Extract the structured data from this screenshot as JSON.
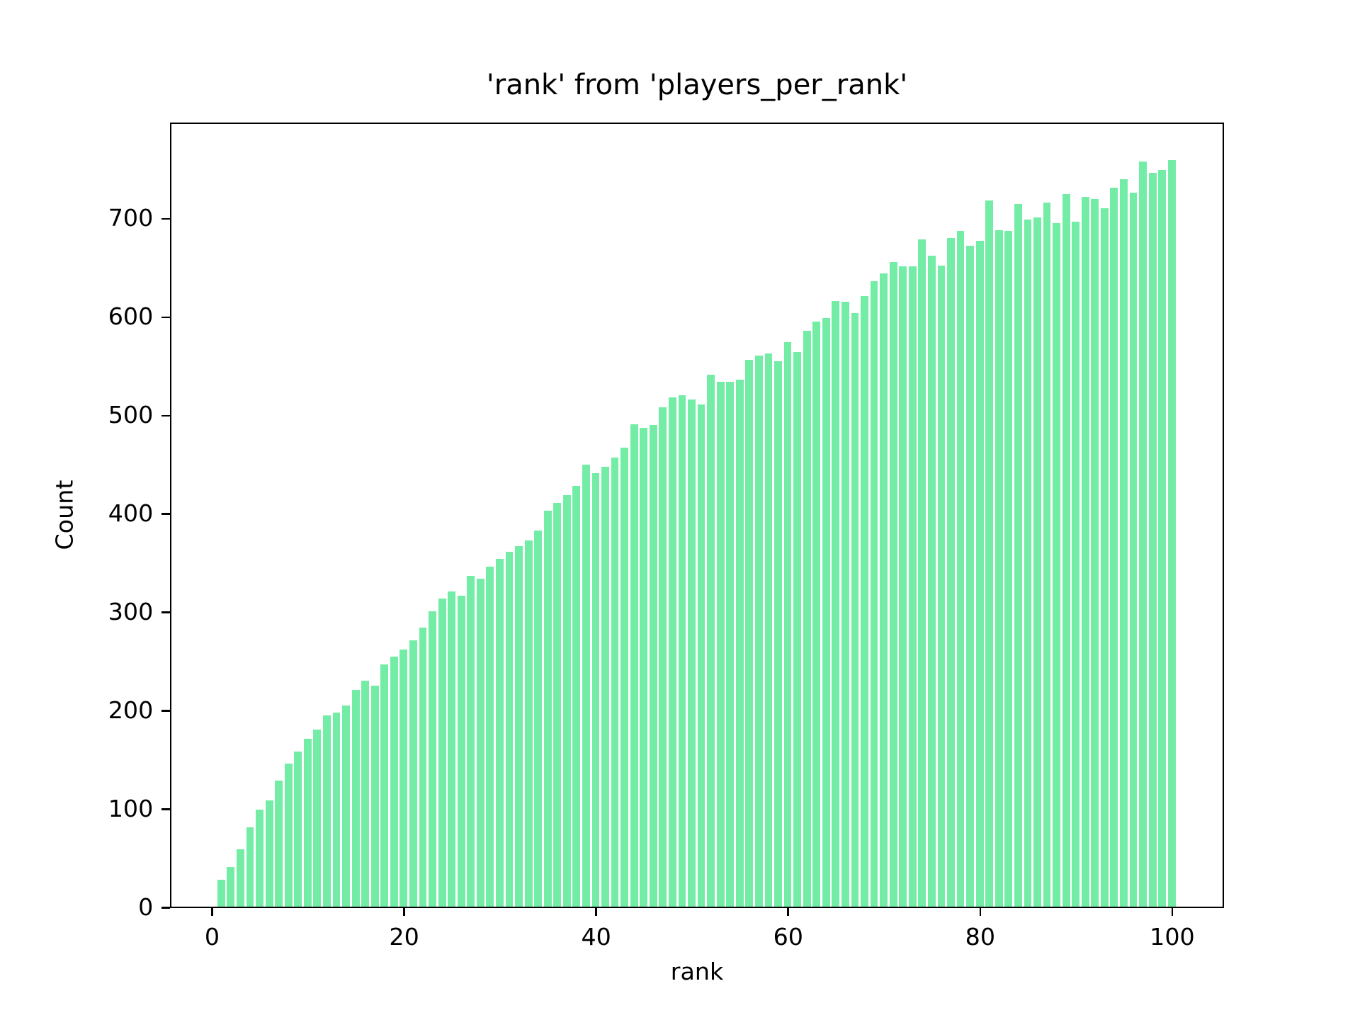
{
  "figure": {
    "background": "#ffffff",
    "text_color": "#000000"
  },
  "chart_data": {
    "type": "bar",
    "title": "'rank' from 'players_per_rank'",
    "xlabel": "rank",
    "ylabel": "Count",
    "bar_color": "#73eca6",
    "bar_width": 0.8,
    "grid": false,
    "legend_position": "none",
    "xlim": [
      -4.39,
      105.39
    ],
    "ylim": [
      0,
      798
    ],
    "xticks": [
      0,
      20,
      40,
      60,
      80,
      100
    ],
    "yticks": [
      0,
      100,
      200,
      300,
      400,
      500,
      600,
      700
    ],
    "x": [
      1,
      2,
      3,
      4,
      5,
      6,
      7,
      8,
      9,
      10,
      11,
      12,
      13,
      14,
      15,
      16,
      17,
      18,
      19,
      20,
      21,
      22,
      23,
      24,
      25,
      26,
      27,
      28,
      29,
      30,
      31,
      32,
      33,
      34,
      35,
      36,
      37,
      38,
      39,
      40,
      41,
      42,
      43,
      44,
      45,
      46,
      47,
      48,
      49,
      50,
      51,
      52,
      53,
      54,
      55,
      56,
      57,
      58,
      59,
      60,
      61,
      62,
      63,
      64,
      65,
      66,
      67,
      68,
      69,
      70,
      71,
      72,
      73,
      74,
      75,
      76,
      77,
      78,
      79,
      80,
      81,
      82,
      83,
      84,
      85,
      86,
      87,
      88,
      89,
      90,
      91,
      92,
      93,
      94,
      95,
      96,
      97,
      98,
      99,
      100
    ],
    "values": [
      27,
      40,
      58,
      80,
      98,
      108,
      128,
      145,
      157,
      170,
      180,
      194,
      197,
      204,
      220,
      229,
      224,
      246,
      254,
      261,
      270,
      283,
      300,
      313,
      320,
      316,
      336,
      333,
      345,
      353,
      360,
      366,
      372,
      382,
      402,
      410,
      418,
      427,
      449,
      440,
      447,
      456,
      466,
      490,
      486,
      489,
      507,
      517,
      519,
      515,
      510,
      540,
      533,
      533,
      535,
      555,
      560,
      562,
      554,
      573,
      563,
      585,
      594,
      598,
      615,
      614,
      603,
      620,
      635,
      643,
      655,
      650,
      650,
      678,
      661,
      651,
      679,
      686,
      671,
      676,
      717,
      687,
      686,
      714,
      698,
      700,
      715,
      694,
      724,
      696,
      721,
      719,
      709,
      730,
      739,
      725,
      757,
      745,
      748,
      758
    ]
  }
}
